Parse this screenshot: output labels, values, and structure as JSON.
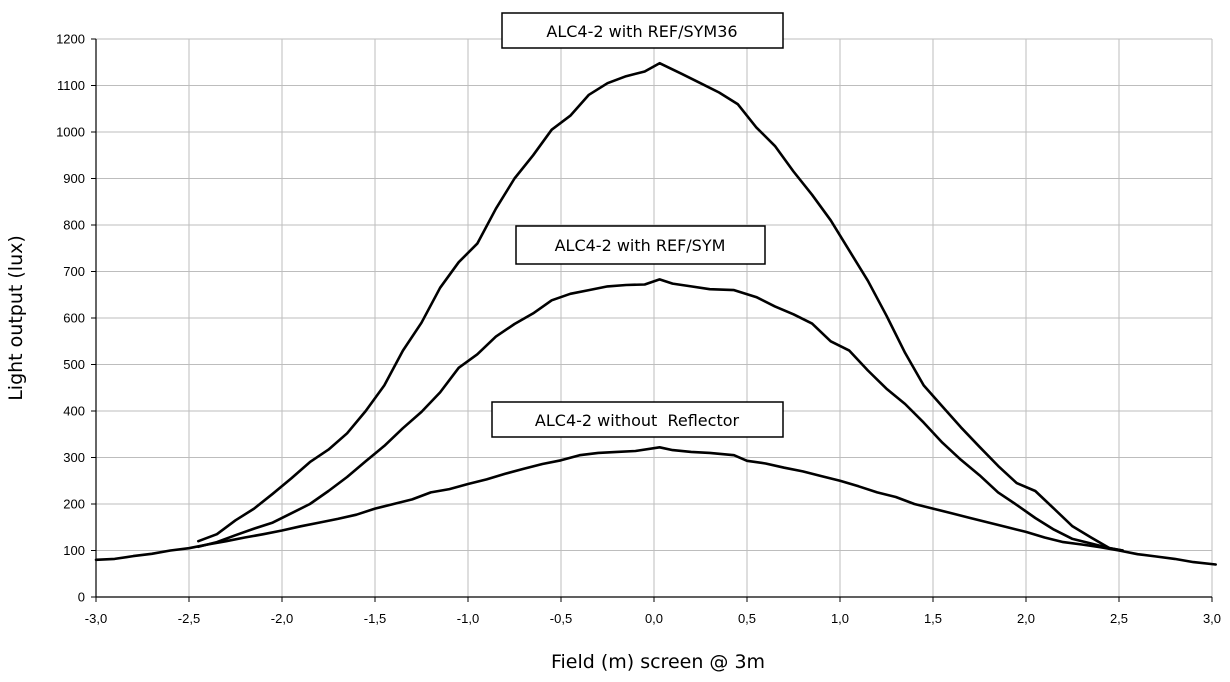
{
  "chart_data": {
    "type": "line",
    "xlabel": "Field (m) screen @ 3m",
    "ylabel": "Light output (lux)",
    "xlim": [
      -3.0,
      3.0
    ],
    "ylim": [
      0,
      1200
    ],
    "x_ticks": [
      "-3,0",
      "-2,5",
      "-2,0",
      "-1,5",
      "-1,0",
      "-0,5",
      "0,0",
      "0,5",
      "1,0",
      "1,5",
      "2,0",
      "2,5",
      "3,0"
    ],
    "y_ticks": [
      "0",
      "100",
      "200",
      "300",
      "400",
      "500",
      "600",
      "700",
      "800",
      "900",
      "1000",
      "1100",
      "1200"
    ],
    "grid": true,
    "line_color": "#000000",
    "series": [
      {
        "name": "ALC4-2 with REF/SYM36",
        "points": [
          [
            -2.45,
            120
          ],
          [
            -2.35,
            135
          ],
          [
            -2.25,
            165
          ],
          [
            -2.15,
            190
          ],
          [
            -2.05,
            222
          ],
          [
            -1.95,
            255
          ],
          [
            -1.85,
            290
          ],
          [
            -1.75,
            317
          ],
          [
            -1.65,
            352
          ],
          [
            -1.55,
            400
          ],
          [
            -1.45,
            455
          ],
          [
            -1.35,
            530
          ],
          [
            -1.25,
            590
          ],
          [
            -1.15,
            665
          ],
          [
            -1.05,
            720
          ],
          [
            -0.95,
            760
          ],
          [
            -0.85,
            835
          ],
          [
            -0.75,
            900
          ],
          [
            -0.65,
            950
          ],
          [
            -0.55,
            1005
          ],
          [
            -0.45,
            1035
          ],
          [
            -0.35,
            1080
          ],
          [
            -0.25,
            1105
          ],
          [
            -0.15,
            1120
          ],
          [
            -0.05,
            1130
          ],
          [
            0.03,
            1148
          ],
          [
            0.15,
            1125
          ],
          [
            0.25,
            1105
          ],
          [
            0.35,
            1085
          ],
          [
            0.45,
            1060
          ],
          [
            0.55,
            1010
          ],
          [
            0.65,
            970
          ],
          [
            0.75,
            915
          ],
          [
            0.85,
            865
          ],
          [
            0.95,
            810
          ],
          [
            1.05,
            745
          ],
          [
            1.15,
            680
          ],
          [
            1.25,
            605
          ],
          [
            1.35,
            525
          ],
          [
            1.45,
            455
          ],
          [
            1.55,
            410
          ],
          [
            1.65,
            365
          ],
          [
            1.75,
            323
          ],
          [
            1.85,
            282
          ],
          [
            1.95,
            245
          ],
          [
            2.05,
            228
          ],
          [
            2.15,
            190
          ],
          [
            2.25,
            152
          ],
          [
            2.35,
            128
          ],
          [
            2.45,
            105
          ],
          [
            2.52,
            100
          ]
        ]
      },
      {
        "name": "ALC4-2 with REF/SYM",
        "points": [
          [
            -2.45,
            108
          ],
          [
            -2.35,
            118
          ],
          [
            -2.25,
            133
          ],
          [
            -2.15,
            147
          ],
          [
            -2.05,
            160
          ],
          [
            -1.95,
            180
          ],
          [
            -1.85,
            200
          ],
          [
            -1.75,
            228
          ],
          [
            -1.65,
            258
          ],
          [
            -1.55,
            292
          ],
          [
            -1.45,
            325
          ],
          [
            -1.35,
            363
          ],
          [
            -1.25,
            398
          ],
          [
            -1.15,
            440
          ],
          [
            -1.05,
            493
          ],
          [
            -0.95,
            522
          ],
          [
            -0.85,
            560
          ],
          [
            -0.75,
            587
          ],
          [
            -0.65,
            610
          ],
          [
            -0.55,
            638
          ],
          [
            -0.45,
            652
          ],
          [
            -0.35,
            660
          ],
          [
            -0.25,
            668
          ],
          [
            -0.15,
            671
          ],
          [
            -0.05,
            672
          ],
          [
            0.03,
            683
          ],
          [
            0.1,
            674
          ],
          [
            0.2,
            668
          ],
          [
            0.3,
            662
          ],
          [
            0.43,
            660
          ],
          [
            0.55,
            645
          ],
          [
            0.65,
            625
          ],
          [
            0.75,
            608
          ],
          [
            0.85,
            588
          ],
          [
            0.95,
            550
          ],
          [
            1.05,
            530
          ],
          [
            1.15,
            487
          ],
          [
            1.25,
            448
          ],
          [
            1.35,
            415
          ],
          [
            1.45,
            375
          ],
          [
            1.55,
            332
          ],
          [
            1.65,
            295
          ],
          [
            1.75,
            262
          ],
          [
            1.85,
            225
          ],
          [
            1.95,
            198
          ],
          [
            2.05,
            170
          ],
          [
            2.15,
            145
          ],
          [
            2.25,
            125
          ],
          [
            2.35,
            115
          ],
          [
            2.45,
            105
          ],
          [
            2.52,
            100
          ]
        ]
      },
      {
        "name": "ALC4-2 without  Reflector",
        "points": [
          [
            -3.0,
            80
          ],
          [
            -2.9,
            82
          ],
          [
            -2.8,
            88
          ],
          [
            -2.7,
            93
          ],
          [
            -2.6,
            100
          ],
          [
            -2.5,
            105
          ],
          [
            -2.4,
            113
          ],
          [
            -2.3,
            120
          ],
          [
            -2.2,
            128
          ],
          [
            -2.1,
            135
          ],
          [
            -2.0,
            143
          ],
          [
            -1.9,
            152
          ],
          [
            -1.8,
            160
          ],
          [
            -1.7,
            168
          ],
          [
            -1.6,
            177
          ],
          [
            -1.5,
            190
          ],
          [
            -1.4,
            200
          ],
          [
            -1.3,
            210
          ],
          [
            -1.2,
            225
          ],
          [
            -1.1,
            232
          ],
          [
            -1.0,
            243
          ],
          [
            -0.9,
            253
          ],
          [
            -0.8,
            265
          ],
          [
            -0.7,
            276
          ],
          [
            -0.6,
            286
          ],
          [
            -0.5,
            294
          ],
          [
            -0.4,
            305
          ],
          [
            -0.3,
            310
          ],
          [
            -0.2,
            312
          ],
          [
            -0.1,
            314
          ],
          [
            0.03,
            322
          ],
          [
            0.1,
            316
          ],
          [
            0.2,
            312
          ],
          [
            0.3,
            310
          ],
          [
            0.43,
            305
          ],
          [
            0.5,
            293
          ],
          [
            0.6,
            287
          ],
          [
            0.7,
            278
          ],
          [
            0.8,
            270
          ],
          [
            0.9,
            260
          ],
          [
            1.0,
            250
          ],
          [
            1.1,
            238
          ],
          [
            1.2,
            225
          ],
          [
            1.3,
            215
          ],
          [
            1.4,
            200
          ],
          [
            1.5,
            190
          ],
          [
            1.6,
            180
          ],
          [
            1.7,
            170
          ],
          [
            1.8,
            160
          ],
          [
            1.9,
            150
          ],
          [
            2.0,
            140
          ],
          [
            2.1,
            128
          ],
          [
            2.2,
            118
          ],
          [
            2.3,
            113
          ],
          [
            2.4,
            107
          ],
          [
            2.5,
            100
          ],
          [
            2.6,
            92
          ],
          [
            2.7,
            87
          ],
          [
            2.8,
            82
          ],
          [
            2.9,
            75
          ],
          [
            3.02,
            70
          ]
        ]
      }
    ],
    "annotations": [
      {
        "text": "ALC4-2 with REF/SYM36"
      },
      {
        "text": "ALC4-2 with REF/SYM"
      },
      {
        "text": "ALC4-2 without  Reflector"
      }
    ]
  }
}
